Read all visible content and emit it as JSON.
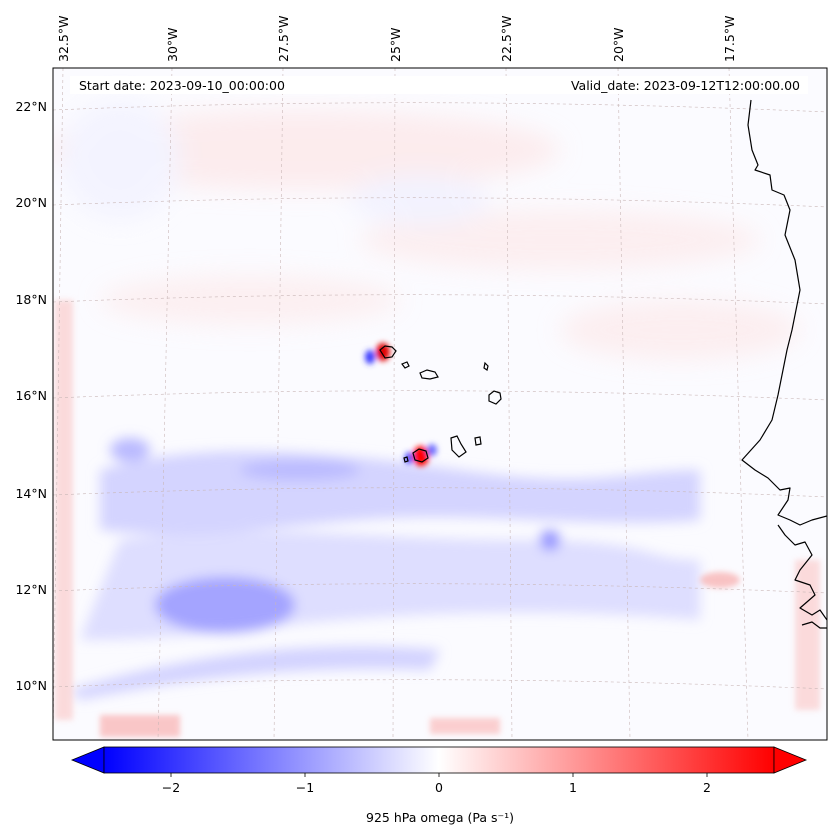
{
  "header": {
    "start_date": "Start date: 2023-09-10_00:00:00",
    "valid_date": "Valid_date: 2023-09-12T12:00:00.00"
  },
  "longitude_labels": [
    "32.5°W",
    "30°W",
    "27.5°W",
    "25°W",
    "22.5°W",
    "20°W",
    "17.5°W"
  ],
  "latitude_labels": [
    "22°N",
    "20°N",
    "18°N",
    "16°N",
    "14°N",
    "12°N",
    "10°N"
  ],
  "colorbar": {
    "label": "925 hPa omega (Pa s⁻¹)",
    "ticks": [
      "−2",
      "−1",
      "0",
      "1",
      "2"
    ],
    "range": [
      -2.5,
      2.5
    ],
    "colors": {
      "min": "#0000ff",
      "mid": "#ffffff",
      "max": "#ff0000"
    },
    "extend": "both"
  },
  "map": {
    "field": "925 hPa omega",
    "units": "Pa s⁻¹",
    "projection": "Lambert conformal",
    "lon_range": [
      -32.8,
      -15.8
    ],
    "lat_range": [
      8.9,
      22.7
    ],
    "features": [
      "coastline",
      "Cape Verde islands",
      "gridlines"
    ]
  }
}
